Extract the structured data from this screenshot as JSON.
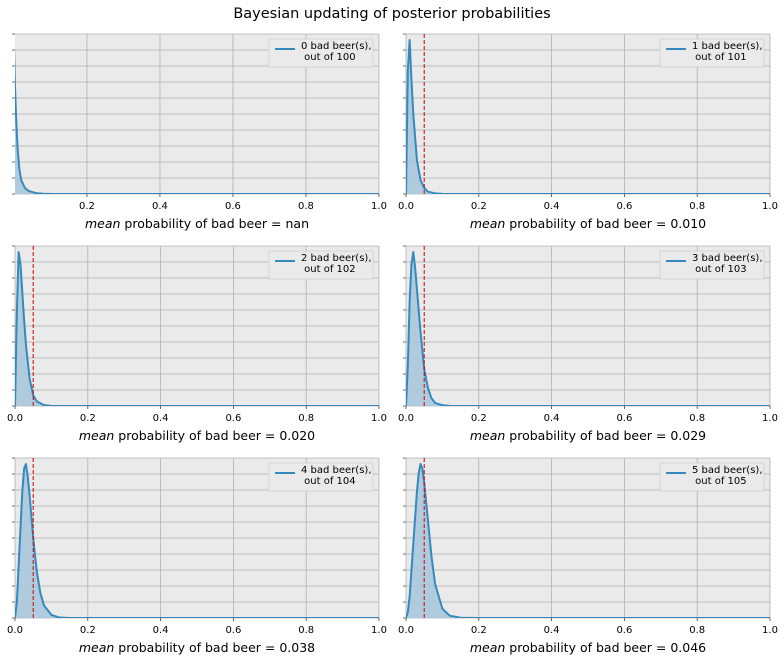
{
  "figure": {
    "title": "Bayesian updating of posterior probabilities",
    "colors": {
      "background": "#ffffff",
      "axes_face": "#eaeaea",
      "grid": "#b0b0b0",
      "line": "#348abd",
      "fill": "#a6c5da",
      "reference_line": "#cc0000"
    }
  },
  "chart_data": [
    {
      "type": "area",
      "series": [
        {
          "name": "0 bad beer(s),\n out of 100",
          "x": [
            0,
            0.003,
            0.006,
            0.01,
            0.015,
            0.02,
            0.03,
            0.04,
            0.06,
            0.08,
            0.1,
            0.2,
            0.4,
            0.6,
            0.8,
            1.0
          ],
          "y": [
            100,
            70,
            50,
            30,
            16,
            9,
            4,
            2,
            0.6,
            0.2,
            0.05,
            0,
            0,
            0,
            0,
            0
          ]
        }
      ],
      "xlim": [
        0.003,
        1.0
      ],
      "xticks": [
        "0.2",
        "0.4",
        "0.6",
        "0.8",
        "1.0"
      ],
      "xlabel_italic": "mean",
      "xlabel_rest": " probability of bad beer = nan",
      "reference_line_x": null,
      "legend": "upper right",
      "grid": true
    },
    {
      "type": "area",
      "series": [
        {
          "name": "1 bad beer(s),\n out of 101",
          "x": [
            0,
            0.005,
            0.01,
            0.015,
            0.02,
            0.03,
            0.04,
            0.05,
            0.06,
            0.08,
            0.1,
            0.2,
            0.4,
            0.6,
            0.8,
            1.0
          ],
          "y": [
            0,
            80,
            100,
            74,
            52,
            22,
            9,
            4,
            1.5,
            0.4,
            0.1,
            0,
            0,
            0,
            0,
            0
          ]
        }
      ],
      "xlim": [
        0,
        1.0
      ],
      "xticks": [
        "0.0",
        "0.2",
        "0.4",
        "0.6",
        "0.8",
        "1.0"
      ],
      "xlabel_italic": "mean",
      "xlabel_rest": " probability of bad beer = 0.010",
      "reference_line_x": 0.05,
      "legend": "upper right",
      "grid": true
    },
    {
      "type": "area",
      "series": [
        {
          "name": "2 bad beer(s),\n out of 102",
          "x": [
            0,
            0.005,
            0.01,
            0.015,
            0.02,
            0.025,
            0.03,
            0.04,
            0.05,
            0.06,
            0.08,
            0.1,
            0.12,
            0.2,
            0.4,
            0.6,
            0.8,
            1.0
          ],
          "y": [
            0,
            60,
            100,
            92,
            74,
            56,
            40,
            18,
            7,
            3,
            0.6,
            0.1,
            0,
            0,
            0,
            0,
            0,
            0
          ]
        }
      ],
      "xlim": [
        0,
        1.0
      ],
      "xticks": [
        "0.0",
        "0.2",
        "0.4",
        "0.6",
        "0.8",
        "1.0"
      ],
      "xlabel_italic": "mean",
      "xlabel_rest": " probability of bad beer = 0.020",
      "reference_line_x": 0.05,
      "legend": "upper right",
      "grid": true
    },
    {
      "type": "area",
      "series": [
        {
          "name": "3 bad beer(s),\n out of 103",
          "x": [
            0,
            0.005,
            0.01,
            0.015,
            0.02,
            0.025,
            0.03,
            0.04,
            0.05,
            0.06,
            0.07,
            0.08,
            0.1,
            0.12,
            0.15,
            0.2,
            0.4,
            0.6,
            0.8,
            1.0
          ],
          "y": [
            0,
            26,
            68,
            92,
            100,
            90,
            76,
            48,
            24,
            12,
            5,
            2,
            0.5,
            0.1,
            0,
            0,
            0,
            0,
            0,
            0
          ]
        }
      ],
      "xlim": [
        0,
        1.0
      ],
      "xticks": [
        "0.0",
        "0.2",
        "0.4",
        "0.6",
        "0.8",
        "1.0"
      ],
      "xlabel_italic": "mean",
      "xlabel_rest": " probability of bad beer = 0.029",
      "reference_line_x": 0.05,
      "legend": "upper right",
      "grid": true
    },
    {
      "type": "area",
      "series": [
        {
          "name": "4 bad beer(s),\n out of 104",
          "x": [
            0,
            0.005,
            0.01,
            0.02,
            0.025,
            0.03,
            0.035,
            0.04,
            0.05,
            0.06,
            0.07,
            0.08,
            0.1,
            0.12,
            0.15,
            0.2,
            0.4,
            0.6,
            0.8,
            1.0
          ],
          "y": [
            0,
            10,
            34,
            82,
            97,
            100,
            92,
            80,
            52,
            30,
            16,
            8,
            2,
            0.4,
            0,
            0,
            0,
            0,
            0,
            0
          ]
        }
      ],
      "xlim": [
        0,
        1.0
      ],
      "xticks": [
        "0.0",
        "0.2",
        "0.4",
        "0.6",
        "0.8",
        "1.0"
      ],
      "xlabel_italic": "mean",
      "xlabel_rest": " probability of bad beer = 0.038",
      "reference_line_x": 0.05,
      "legend": "upper right",
      "grid": true
    },
    {
      "type": "area",
      "series": [
        {
          "name": "5 bad beer(s),\n out of 105",
          "x": [
            0,
            0.005,
            0.01,
            0.02,
            0.03,
            0.035,
            0.04,
            0.045,
            0.05,
            0.06,
            0.07,
            0.08,
            0.1,
            0.12,
            0.15,
            0.2,
            0.4,
            0.6,
            0.8,
            1.0
          ],
          "y": [
            0,
            4,
            14,
            48,
            82,
            94,
            100,
            97,
            88,
            64,
            40,
            22,
            6,
            1.5,
            0.2,
            0,
            0,
            0,
            0,
            0
          ]
        }
      ],
      "xlim": [
        0,
        1.0
      ],
      "xticks": [
        "0.0",
        "0.2",
        "0.4",
        "0.6",
        "0.8",
        "1.0"
      ],
      "xlabel_italic": "mean",
      "xlabel_rest": " probability of bad beer = 0.046",
      "reference_line_x": 0.05,
      "legend": "upper right",
      "grid": true
    }
  ]
}
